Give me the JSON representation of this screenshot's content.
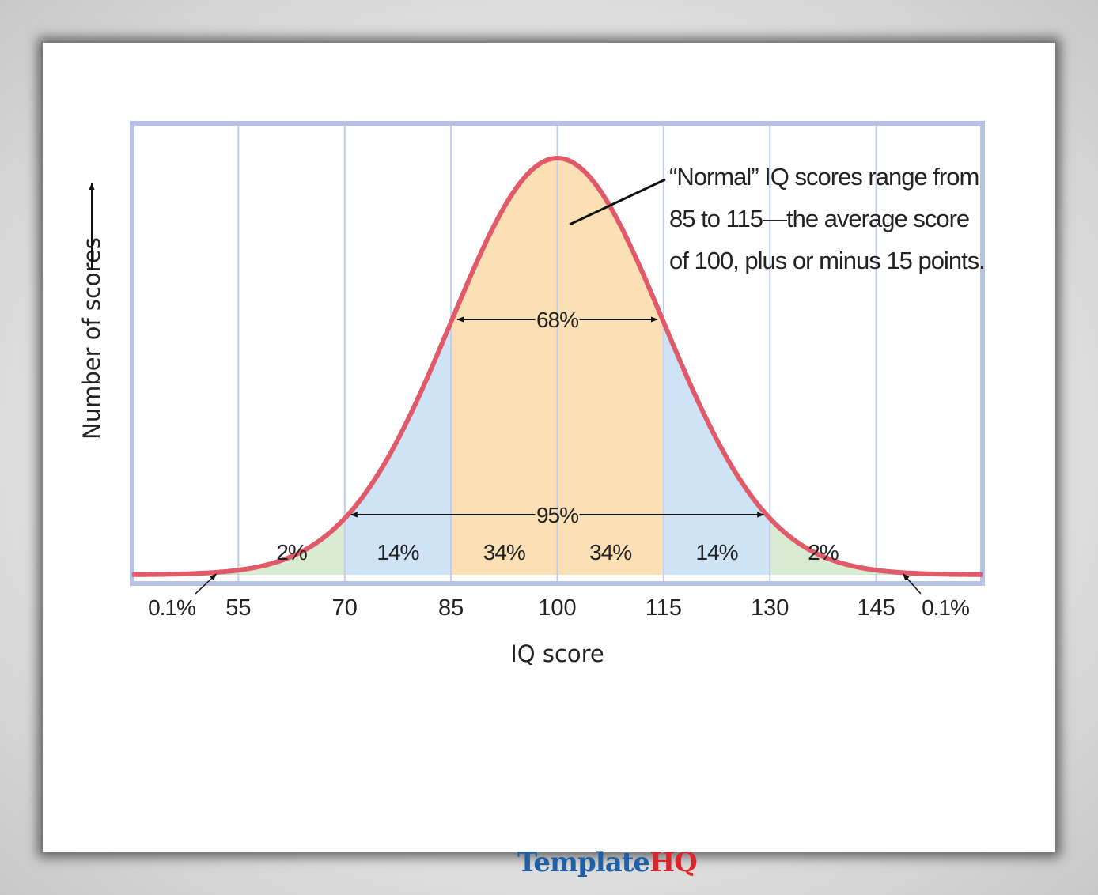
{
  "chart_data": {
    "type": "area",
    "title": "",
    "xlabel": "IQ score",
    "ylabel": "Number of scores",
    "xlim": [
      40,
      160
    ],
    "x_ticks": [
      55,
      70,
      85,
      100,
      115,
      130,
      145
    ],
    "distribution": {
      "kind": "normal",
      "mean": 100,
      "sd": 15
    },
    "segments": [
      {
        "from": 40,
        "to": 55,
        "label": "0.1%",
        "color": "#c9e4c2"
      },
      {
        "from": 55,
        "to": 70,
        "label": "2%",
        "color": "#d9ecd3"
      },
      {
        "from": 70,
        "to": 85,
        "label": "14%",
        "color": "#cfe3f6"
      },
      {
        "from": 85,
        "to": 100,
        "label": "34%",
        "color": "#fbe0b5"
      },
      {
        "from": 100,
        "to": 115,
        "label": "34%",
        "color": "#fbe0b5"
      },
      {
        "from": 115,
        "to": 130,
        "label": "14%",
        "color": "#cfe3f6"
      },
      {
        "from": 130,
        "to": 145,
        "label": "2%",
        "color": "#d9ecd3"
      },
      {
        "from": 145,
        "to": 160,
        "label": "0.1%",
        "color": "#c9e4c2"
      }
    ],
    "ranges": [
      {
        "from": 85,
        "to": 115,
        "label": "68%"
      },
      {
        "from": 70,
        "to": 130,
        "label": "95%"
      }
    ],
    "annotation": {
      "lines": [
        "“Normal” IQ scores range from",
        "85 to 115—the average score",
        "of 100, plus or minus 15 points."
      ]
    },
    "colors": {
      "curve": "#e05a6a",
      "frame": "#b7c2e6",
      "gridline": "#c3cce8"
    }
  },
  "watermark": {
    "part1": "Template",
    "part2": "HQ"
  }
}
